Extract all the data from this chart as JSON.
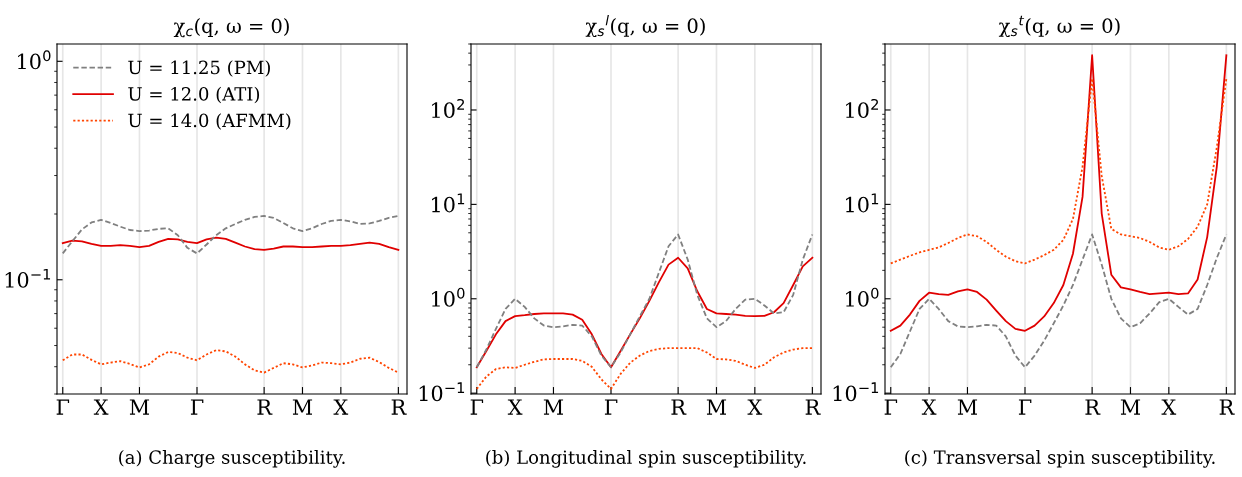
{
  "chart_data": [
    {
      "type": "line",
      "title": "χ$_{c}$(q, ω = 0)",
      "log": "y",
      "grid": "x",
      "legend": "top left",
      "categories": [
        "Γ",
        null,
        null,
        null,
        "X",
        null,
        null,
        null,
        "M",
        null,
        null,
        null,
        null,
        null,
        "Γ",
        null,
        null,
        null,
        null,
        null,
        null,
        "R",
        null,
        null,
        null,
        "M",
        null,
        null,
        null,
        "X",
        null,
        null,
        null,
        null,
        null,
        "R"
      ],
      "ylim": [
        0.03,
        1.2
      ],
      "yticks": [
        {
          "value": 0.1,
          "label": "10$^{−1}$"
        },
        {
          "value": 1,
          "label": "10$^{0}$"
        }
      ],
      "annotations": [
        "(a) Charge susceptibility."
      ],
      "series": [
        {
          "name": "U = 11.25 (PM)",
          "color": "#808080",
          "line_style": "dashed",
          "values": [
            0.132,
            0.15,
            0.17,
            0.183,
            0.188,
            0.182,
            0.175,
            0.169,
            0.167,
            0.168,
            0.171,
            0.172,
            0.16,
            0.14,
            0.132,
            0.145,
            0.16,
            0.172,
            0.18,
            0.188,
            0.194,
            0.196,
            0.192,
            0.182,
            0.172,
            0.167,
            0.172,
            0.18,
            0.186,
            0.188,
            0.185,
            0.18,
            0.181,
            0.186,
            0.192,
            0.196
          ]
        },
        {
          "name": "U = 12.0 (ATI)",
          "color": "#e00000",
          "line_style": "solid",
          "values": [
            0.147,
            0.151,
            0.15,
            0.146,
            0.143,
            0.143,
            0.144,
            0.143,
            0.141,
            0.143,
            0.149,
            0.154,
            0.153,
            0.149,
            0.147,
            0.153,
            0.156,
            0.154,
            0.148,
            0.142,
            0.138,
            0.137,
            0.139,
            0.142,
            0.142,
            0.141,
            0.141,
            0.142,
            0.143,
            0.143,
            0.144,
            0.146,
            0.148,
            0.146,
            0.141,
            0.137
          ]
        },
        {
          "name": "U = 14.0 (AFMM)",
          "color": "#ff4500",
          "line_style": "dotted",
          "values": [
            0.0428,
            0.0455,
            0.0455,
            0.043,
            0.041,
            0.0418,
            0.0424,
            0.0412,
            0.0397,
            0.041,
            0.0445,
            0.0467,
            0.0462,
            0.044,
            0.0428,
            0.0455,
            0.0476,
            0.047,
            0.0445,
            0.041,
            0.0385,
            0.0376,
            0.0395,
            0.0415,
            0.041,
            0.0397,
            0.0405,
            0.0418,
            0.0415,
            0.041,
            0.0418,
            0.0435,
            0.044,
            0.042,
            0.0395,
            0.0376
          ]
        }
      ]
    },
    {
      "type": "line",
      "title": "χ$_{s}$$^{l}$(q, ω = 0)",
      "log": "y",
      "grid": "x",
      "categories": [
        "Γ",
        null,
        null,
        null,
        "X",
        null,
        null,
        null,
        "M",
        null,
        null,
        null,
        null,
        null,
        "Γ",
        null,
        null,
        null,
        null,
        null,
        null,
        "R",
        null,
        null,
        null,
        "M",
        null,
        null,
        null,
        "X",
        null,
        null,
        null,
        null,
        null,
        "R"
      ],
      "ylim": [
        0.098,
        500
      ],
      "yticks": [
        {
          "value": 0.1,
          "label": "10$^{−1}$"
        },
        {
          "value": 1,
          "label": "10$^{0}$"
        },
        {
          "value": 10,
          "label": "10$^{1}$"
        },
        {
          "value": 100,
          "label": "10$^{2}$"
        }
      ],
      "annotations": [
        "(b) Longitudinal spin susceptibility."
      ],
      "series": [
        {
          "color": "#808080",
          "line_style": "dashed",
          "values": [
            0.188,
            0.29,
            0.48,
            0.78,
            1.0,
            0.82,
            0.62,
            0.52,
            0.5,
            0.51,
            0.53,
            0.52,
            0.4,
            0.25,
            0.188,
            0.27,
            0.42,
            0.65,
            1.0,
            1.9,
            3.6,
            4.8,
            2.6,
            1.1,
            0.62,
            0.5,
            0.58,
            0.78,
            0.98,
            1.0,
            0.85,
            0.7,
            0.72,
            1.1,
            2.6,
            4.8
          ]
        },
        {
          "color": "#e00000",
          "line_style": "solid",
          "values": [
            0.188,
            0.28,
            0.42,
            0.58,
            0.655,
            0.67,
            0.69,
            0.7,
            0.7,
            0.7,
            0.68,
            0.6,
            0.42,
            0.26,
            0.188,
            0.28,
            0.42,
            0.62,
            0.95,
            1.5,
            2.3,
            2.72,
            2.1,
            1.2,
            0.78,
            0.7,
            0.69,
            0.68,
            0.66,
            0.655,
            0.66,
            0.72,
            0.9,
            1.4,
            2.2,
            2.72
          ]
        },
        {
          "color": "#ff4500",
          "line_style": "dotted",
          "values": [
            0.111,
            0.15,
            0.18,
            0.188,
            0.185,
            0.2,
            0.215,
            0.228,
            0.23,
            0.23,
            0.23,
            0.22,
            0.19,
            0.14,
            0.111,
            0.16,
            0.21,
            0.25,
            0.28,
            0.295,
            0.3,
            0.3,
            0.3,
            0.3,
            0.27,
            0.23,
            0.228,
            0.22,
            0.2,
            0.185,
            0.2,
            0.24,
            0.27,
            0.29,
            0.3,
            0.3
          ]
        }
      ]
    },
    {
      "type": "line",
      "title": "χ$_{s}$$^{t}$(q, ω = 0)",
      "log": "y",
      "grid": "x",
      "categories": [
        "Γ",
        null,
        null,
        null,
        "X",
        null,
        null,
        null,
        "M",
        null,
        null,
        null,
        null,
        null,
        "Γ",
        null,
        null,
        null,
        null,
        null,
        null,
        "R",
        null,
        null,
        null,
        "M",
        null,
        null,
        null,
        "X",
        null,
        null,
        null,
        null,
        null,
        "R"
      ],
      "ylim": [
        0.098,
        500
      ],
      "yticks": [
        {
          "value": 0.1,
          "label": "10$^{−1}$"
        },
        {
          "value": 1,
          "label": "10$^{0}$"
        },
        {
          "value": 10,
          "label": "10$^{1}$"
        },
        {
          "value": 100,
          "label": "10$^{2}$"
        }
      ],
      "annotations": [
        "(c) Transversal spin susceptibility."
      ],
      "series": [
        {
          "color": "#808080",
          "line_style": "dashed",
          "values": [
            0.188,
            0.26,
            0.45,
            0.78,
            1.0,
            0.78,
            0.58,
            0.51,
            0.5,
            0.51,
            0.53,
            0.52,
            0.4,
            0.25,
            0.188,
            0.25,
            0.36,
            0.55,
            0.85,
            1.4,
            2.6,
            4.8,
            2.3,
            1.0,
            0.62,
            0.5,
            0.55,
            0.7,
            0.92,
            1.0,
            0.82,
            0.68,
            0.78,
            1.4,
            2.7,
            4.8
          ]
        },
        {
          "color": "#ff4500",
          "line_style": "dotted",
          "values": [
            2.37,
            2.6,
            2.85,
            3.1,
            3.3,
            3.5,
            3.9,
            4.4,
            4.8,
            4.6,
            4.0,
            3.3,
            2.8,
            2.5,
            2.37,
            2.6,
            2.9,
            3.3,
            4.2,
            7,
            25,
            215,
            20,
            5.5,
            4.8,
            4.6,
            4.4,
            4.0,
            3.5,
            3.3,
            3.6,
            4.3,
            5.8,
            10,
            40,
            215
          ]
        },
        {
          "color": "#e00000",
          "line_style": "solid",
          "values": [
            0.458,
            0.52,
            0.68,
            0.95,
            1.16,
            1.12,
            1.1,
            1.2,
            1.26,
            1.18,
            0.98,
            0.75,
            0.58,
            0.48,
            0.458,
            0.52,
            0.65,
            0.9,
            1.4,
            3.0,
            12,
            380,
            8,
            1.8,
            1.32,
            1.26,
            1.18,
            1.12,
            1.14,
            1.16,
            1.12,
            1.14,
            1.6,
            4.5,
            25,
            380
          ]
        }
      ]
    }
  ]
}
